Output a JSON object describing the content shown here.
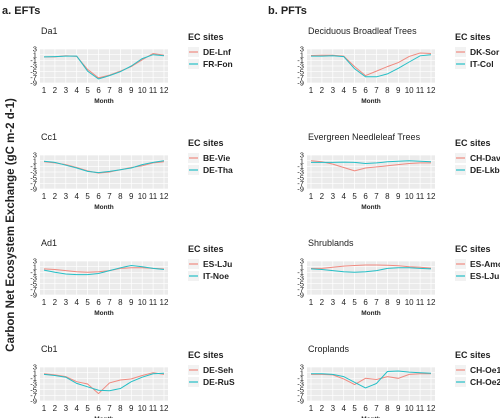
{
  "figure": {
    "ylabel": "Carbon Net Ecosystem Exchange (gC m-2 d-1)",
    "col_a_title": "a. EFTs",
    "col_b_title": "b. PFTs",
    "legend_title": "EC sites",
    "x_title": "Month"
  },
  "colors": {
    "series1": "#f08a80",
    "series2": "#25bfc6"
  },
  "chart_data": [
    {
      "type": "line",
      "title": "Da1",
      "xlabel": "Month",
      "ylabel": "",
      "ylim": [
        -9,
        3
      ],
      "yticks": [
        3,
        1,
        -1,
        -3,
        -5,
        -7,
        -9
      ],
      "x": [
        1,
        2,
        3,
        4,
        5,
        6,
        7,
        8,
        9,
        10,
        11,
        12
      ],
      "series": [
        {
          "name": "DE-Lnf",
          "values": [
            0.2,
            0.2,
            0.6,
            0.4,
            -4.2,
            -7.2,
            -6.2,
            -4.8,
            -3.2,
            -0.8,
            1.4,
            0.8
          ]
        },
        {
          "name": "FR-Fon",
          "values": [
            0.2,
            0.3,
            0.5,
            0.5,
            -4.8,
            -7.6,
            -6.4,
            -5.0,
            -3.0,
            -0.4,
            1.0,
            0.6
          ]
        }
      ]
    },
    {
      "type": "line",
      "title": "Deciduous Broadleaf Trees",
      "xlabel": "Month",
      "ylabel": "",
      "ylim": [
        -9,
        3
      ],
      "yticks": [
        3,
        1,
        -1,
        -3,
        -5,
        -7,
        -9
      ],
      "x": [
        1,
        2,
        3,
        4,
        5,
        6,
        7,
        8,
        9,
        10,
        11,
        12
      ],
      "series": [
        {
          "name": "DK-Sor",
          "values": [
            0.7,
            0.8,
            0.8,
            0.5,
            -3.2,
            -6.4,
            -4.8,
            -3.2,
            -1.8,
            0.4,
            1.6,
            1.4
          ]
        },
        {
          "name": "IT-Col",
          "values": [
            0.5,
            0.5,
            0.6,
            0.3,
            -4.0,
            -6.8,
            -6.8,
            -5.8,
            -3.8,
            -1.6,
            0.6,
            1.0
          ]
        }
      ]
    },
    {
      "type": "line",
      "title": "Cc1",
      "xlabel": "Month",
      "ylabel": "",
      "ylim": [
        -9,
        3
      ],
      "yticks": [
        3,
        1,
        -1,
        -3,
        -5,
        -7,
        -9
      ],
      "x": [
        1,
        2,
        3,
        4,
        5,
        6,
        7,
        8,
        9,
        10,
        11,
        12
      ],
      "series": [
        {
          "name": "BE-Vie",
          "values": [
            0.6,
            0.2,
            -0.4,
            -1.4,
            -2.6,
            -3.4,
            -3.0,
            -2.2,
            -1.4,
            -0.8,
            0.2,
            0.6
          ]
        },
        {
          "name": "DE-Tha",
          "values": [
            0.8,
            0.4,
            -0.6,
            -1.6,
            -2.8,
            -3.2,
            -2.8,
            -2.2,
            -1.6,
            -0.4,
            0.4,
            1.0
          ]
        }
      ]
    },
    {
      "type": "line",
      "title": "Evergreen Needleleaf Trees",
      "xlabel": "Month",
      "ylabel": "",
      "ylim": [
        -9,
        3
      ],
      "yticks": [
        3,
        1,
        -1,
        -3,
        -5,
        -7,
        -9
      ],
      "x": [
        1,
        2,
        3,
        4,
        5,
        6,
        7,
        8,
        9,
        10,
        11,
        12
      ],
      "series": [
        {
          "name": "CH-Dav",
          "values": [
            1.0,
            0.6,
            -0.2,
            -1.4,
            -2.6,
            -1.6,
            -1.2,
            -0.8,
            -0.4,
            0.0,
            0.2,
            0.2
          ]
        },
        {
          "name": "DE-Lkb",
          "values": [
            0.4,
            0.4,
            0.4,
            0.5,
            0.4,
            0.0,
            0.2,
            0.6,
            0.8,
            1.0,
            0.8,
            0.6
          ]
        }
      ]
    },
    {
      "type": "line",
      "title": "Ad1",
      "xlabel": "Month",
      "ylabel": "",
      "ylim": [
        -9,
        3
      ],
      "yticks": [
        3,
        1,
        -1,
        -3,
        -5,
        -7,
        -9
      ],
      "x": [
        1,
        2,
        3,
        4,
        5,
        6,
        7,
        8,
        9,
        10,
        11,
        12
      ],
      "series": [
        {
          "name": "ES-LJu",
          "values": [
            0.2,
            0.0,
            -0.4,
            -0.8,
            -1.0,
            -0.8,
            -0.4,
            0.4,
            0.6,
            0.6,
            0.4,
            0.2
          ]
        },
        {
          "name": "IT-Noe",
          "values": [
            -0.2,
            -1.0,
            -1.6,
            -1.8,
            -1.8,
            -1.4,
            -0.4,
            0.6,
            1.4,
            1.0,
            0.4,
            0.0
          ]
        }
      ]
    },
    {
      "type": "line",
      "title": "Shrublands",
      "xlabel": "Month",
      "ylabel": "",
      "ylim": [
        -9,
        3
      ],
      "yticks": [
        3,
        1,
        -1,
        -3,
        -5,
        -7,
        -9
      ],
      "x": [
        1,
        2,
        3,
        4,
        5,
        6,
        7,
        8,
        9,
        10,
        11,
        12
      ],
      "series": [
        {
          "name": "ES-Amo",
          "values": [
            0.4,
            0.4,
            0.8,
            1.2,
            1.4,
            1.6,
            1.6,
            1.5,
            1.3,
            1.0,
            0.8,
            0.5
          ]
        },
        {
          "name": "ES-LJu",
          "values": [
            0.2,
            0.0,
            -0.4,
            -0.8,
            -1.0,
            -0.8,
            -0.4,
            0.4,
            0.6,
            0.6,
            0.4,
            0.2
          ]
        }
      ]
    },
    {
      "type": "line",
      "title": "Cb1",
      "xlabel": "Month",
      "ylabel": "",
      "ylim": [
        -9,
        3
      ],
      "yticks": [
        3,
        1,
        -1,
        -3,
        -5,
        -7,
        -9
      ],
      "x": [
        1,
        2,
        3,
        4,
        5,
        6,
        7,
        8,
        9,
        10,
        11,
        12
      ],
      "series": [
        {
          "name": "DE-Seh",
          "values": [
            0.6,
            0.2,
            -0.4,
            -2.2,
            -3.0,
            -6.4,
            -2.6,
            -1.6,
            -1.2,
            0.0,
            1.0,
            0.4
          ]
        },
        {
          "name": "DE-RuS",
          "values": [
            0.4,
            0.0,
            -0.6,
            -2.8,
            -4.0,
            -5.2,
            -5.4,
            -4.6,
            -2.2,
            -0.6,
            0.6,
            0.8
          ]
        }
      ]
    },
    {
      "type": "line",
      "title": "Croplands",
      "xlabel": "Month",
      "ylabel": "",
      "ylim": [
        -9,
        3
      ],
      "yticks": [
        3,
        1,
        -1,
        -3,
        -5,
        -7,
        -9
      ],
      "x": [
        1,
        2,
        3,
        4,
        5,
        6,
        7,
        8,
        9,
        10,
        11,
        12
      ],
      "series": [
        {
          "name": "CH-Oe1",
          "values": [
            0.4,
            0.4,
            0.2,
            -1.2,
            -3.2,
            -1.0,
            -1.4,
            -0.4,
            -1.0,
            0.4,
            0.6,
            0.6
          ]
        },
        {
          "name": "CH-Oe2",
          "values": [
            0.6,
            0.6,
            0.4,
            -0.4,
            -2.4,
            -4.4,
            -2.8,
            1.4,
            1.6,
            1.2,
            1.0,
            0.8
          ]
        }
      ]
    }
  ]
}
